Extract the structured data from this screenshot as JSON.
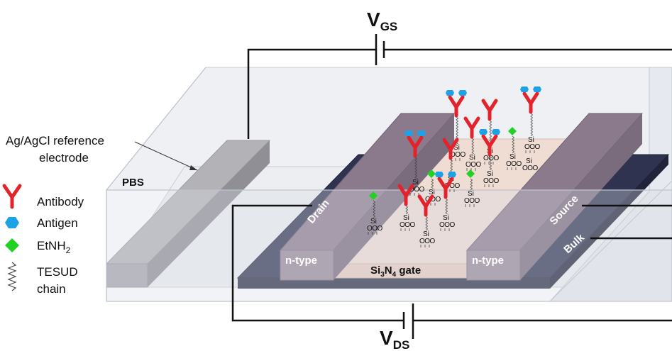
{
  "voltages": {
    "gate": {
      "main": "V",
      "sub": "GS"
    },
    "drain_source": {
      "main": "V",
      "sub": "DS"
    }
  },
  "reference_electrode": {
    "line1": "Ag/AgCl reference",
    "line2": "electrode"
  },
  "solution_label": "PBS",
  "legend": {
    "antibody": "Antibody",
    "antigen": "Antigen",
    "etnh2": {
      "main": "EtNH",
      "sub": "2"
    },
    "tesud": {
      "line1": "TESUD",
      "line2": "chain"
    }
  },
  "device": {
    "drain": "Drain",
    "source": "Source",
    "bulk": "Bulk",
    "n_type_left": "n-type",
    "n_type_right": "n-type",
    "gate": {
      "p1": "Si",
      "s1": "3",
      "p2": "N",
      "s2": "4",
      "p3": " gate"
    }
  },
  "molecule_labels": {
    "si": "Si",
    "oxygens": "OOO"
  },
  "colors": {
    "antibody": "#e3222b",
    "antigen": "#1ea2e6",
    "etnh2": "#22d026",
    "bulk": "#2b2f4a",
    "channel": "#efdcd3",
    "electrode": "#a09ca5"
  }
}
